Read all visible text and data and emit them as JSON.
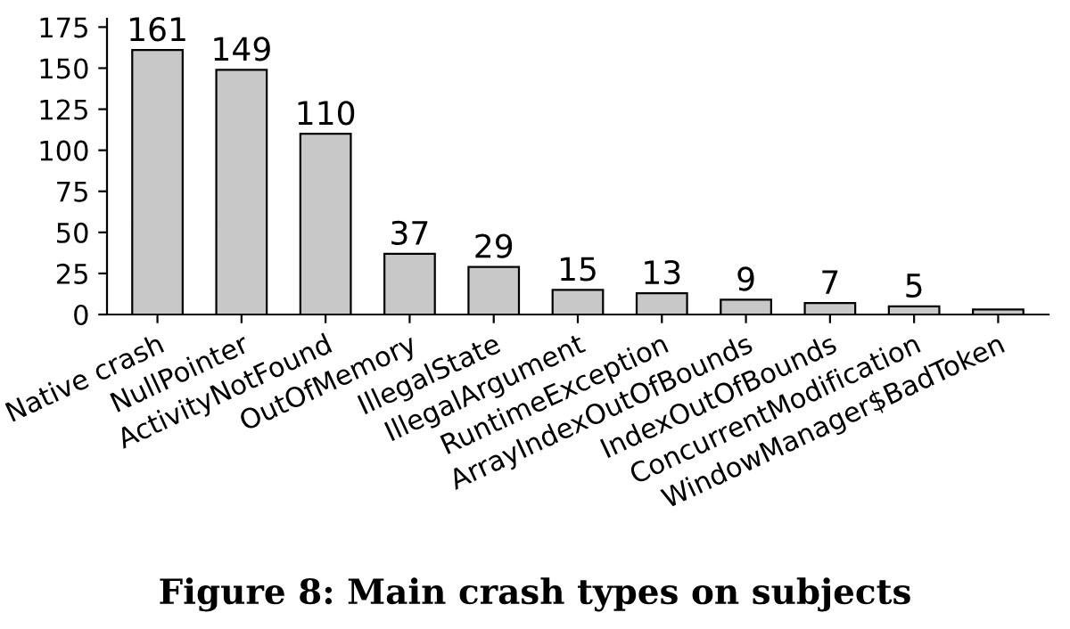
{
  "chart_data": {
    "type": "bar",
    "categories": [
      "Native crash",
      "NullPointer",
      "ActivityNotFound",
      "OutOfMemory",
      "IllegalState",
      "IllegalArgument",
      "RuntimeException",
      "ArrayIndexOutOfBounds",
      "IndexOutOfBounds",
      "ConcurrentModification",
      "WindowManager$BadToken"
    ],
    "values": [
      161,
      149,
      110,
      37,
      29,
      15,
      13,
      9,
      7,
      5,
      3
    ],
    "value_labels": [
      "161",
      "149",
      "110",
      "37",
      "29",
      "15",
      "13",
      "9",
      "7",
      "5",
      null
    ],
    "color": "#c8c8c8",
    "ylim": [
      0,
      180
    ],
    "yticks": [
      0,
      25,
      50,
      75,
      100,
      125,
      150,
      175
    ],
    "grid": false,
    "annotations": [
      "Figure 8: Main crash types on subjects"
    ]
  }
}
